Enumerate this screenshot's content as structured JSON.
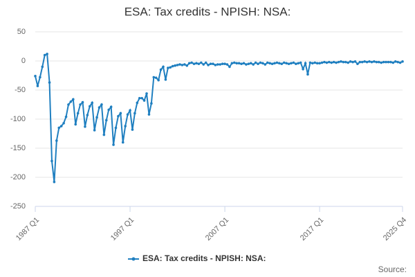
{
  "chart_data": {
    "type": "line",
    "title": "ESA: Tax credits - NPISH: NSA:",
    "source": "Source:",
    "categories": [
      "1987 Q1",
      null,
      null,
      null,
      null,
      null,
      null,
      null,
      null,
      null,
      null,
      null,
      null,
      null,
      null,
      null,
      null,
      null,
      null,
      null,
      null,
      null,
      null,
      null,
      null,
      null,
      null,
      null,
      null,
      null,
      null,
      null,
      null,
      null,
      null,
      null,
      null,
      null,
      null,
      null,
      "1997 Q1",
      null,
      null,
      null,
      null,
      null,
      null,
      null,
      null,
      null,
      null,
      null,
      null,
      null,
      null,
      null,
      null,
      null,
      null,
      null,
      null,
      null,
      null,
      null,
      null,
      null,
      null,
      null,
      null,
      null,
      null,
      null,
      null,
      null,
      null,
      null,
      null,
      null,
      null,
      null,
      "2007 Q1",
      null,
      null,
      null,
      null,
      null,
      null,
      null,
      null,
      null,
      null,
      null,
      null,
      null,
      null,
      null,
      null,
      null,
      null,
      null,
      null,
      null,
      null,
      null,
      null,
      null,
      null,
      null,
      null,
      null,
      null,
      null,
      null,
      null,
      null,
      null,
      null,
      null,
      null,
      null,
      "2017 Q1",
      null,
      null,
      null,
      null,
      null,
      null,
      null,
      null,
      null,
      null,
      null,
      null,
      null,
      null,
      null,
      null,
      null,
      null,
      null,
      null,
      null,
      null,
      null,
      null,
      null,
      null,
      null,
      null,
      null,
      null,
      null,
      null,
      null,
      null,
      "2025 Q4"
    ],
    "series": [
      {
        "name": "ESA: Tax credits - NPISH: NSA:",
        "color": "#1f7fc0",
        "values": [
          -26,
          -43,
          -28,
          -10,
          10,
          12,
          -37,
          -172,
          -208,
          -137,
          -115,
          -112,
          -107,
          -96,
          -75,
          -70,
          -66,
          -109,
          -90,
          -75,
          -71,
          -113,
          -93,
          -78,
          -72,
          -119,
          -97,
          -80,
          -75,
          -127,
          -102,
          -84,
          -79,
          -144,
          -115,
          -95,
          -90,
          -140,
          -112,
          -92,
          -85,
          -118,
          -90,
          -72,
          -64,
          -64,
          -68,
          -56,
          -92,
          -73,
          -28,
          -29,
          -33,
          -15,
          -10,
          -32,
          -12,
          -11,
          -9,
          -8,
          -7,
          -6,
          -7,
          -6,
          -8,
          -4,
          -3,
          -5,
          -4,
          -5,
          -3,
          -6,
          -3,
          -7,
          -5,
          -5,
          -7,
          -6,
          -6,
          -5,
          -5,
          -6,
          -10,
          -4,
          -3,
          -4,
          -4,
          -5,
          -4,
          -6,
          -5,
          -4,
          -6,
          -3,
          -5,
          -3,
          -4,
          -6,
          -3,
          -4,
          -5,
          -4,
          -3,
          -4,
          -5,
          -3,
          -4,
          -5,
          -4,
          -3,
          -5,
          -4,
          -3,
          -14,
          -4,
          -23,
          -3,
          -4,
          -3,
          -4,
          -4,
          -3,
          -2,
          -3,
          -2,
          -3,
          -2,
          -3,
          -2,
          -1,
          -2,
          -2,
          -3,
          -1,
          -2,
          -1,
          -5,
          -2,
          -2,
          -1,
          -2,
          -1,
          -2,
          -1,
          -2,
          -2,
          -3,
          -2,
          -2,
          -2,
          -2,
          -3,
          -1,
          -2,
          -3,
          -1
        ]
      }
    ],
    "ylim": [
      -250,
      50
    ],
    "yticks": [
      -250,
      -200,
      -150,
      -100,
      -50,
      0,
      50
    ],
    "grid": true
  }
}
